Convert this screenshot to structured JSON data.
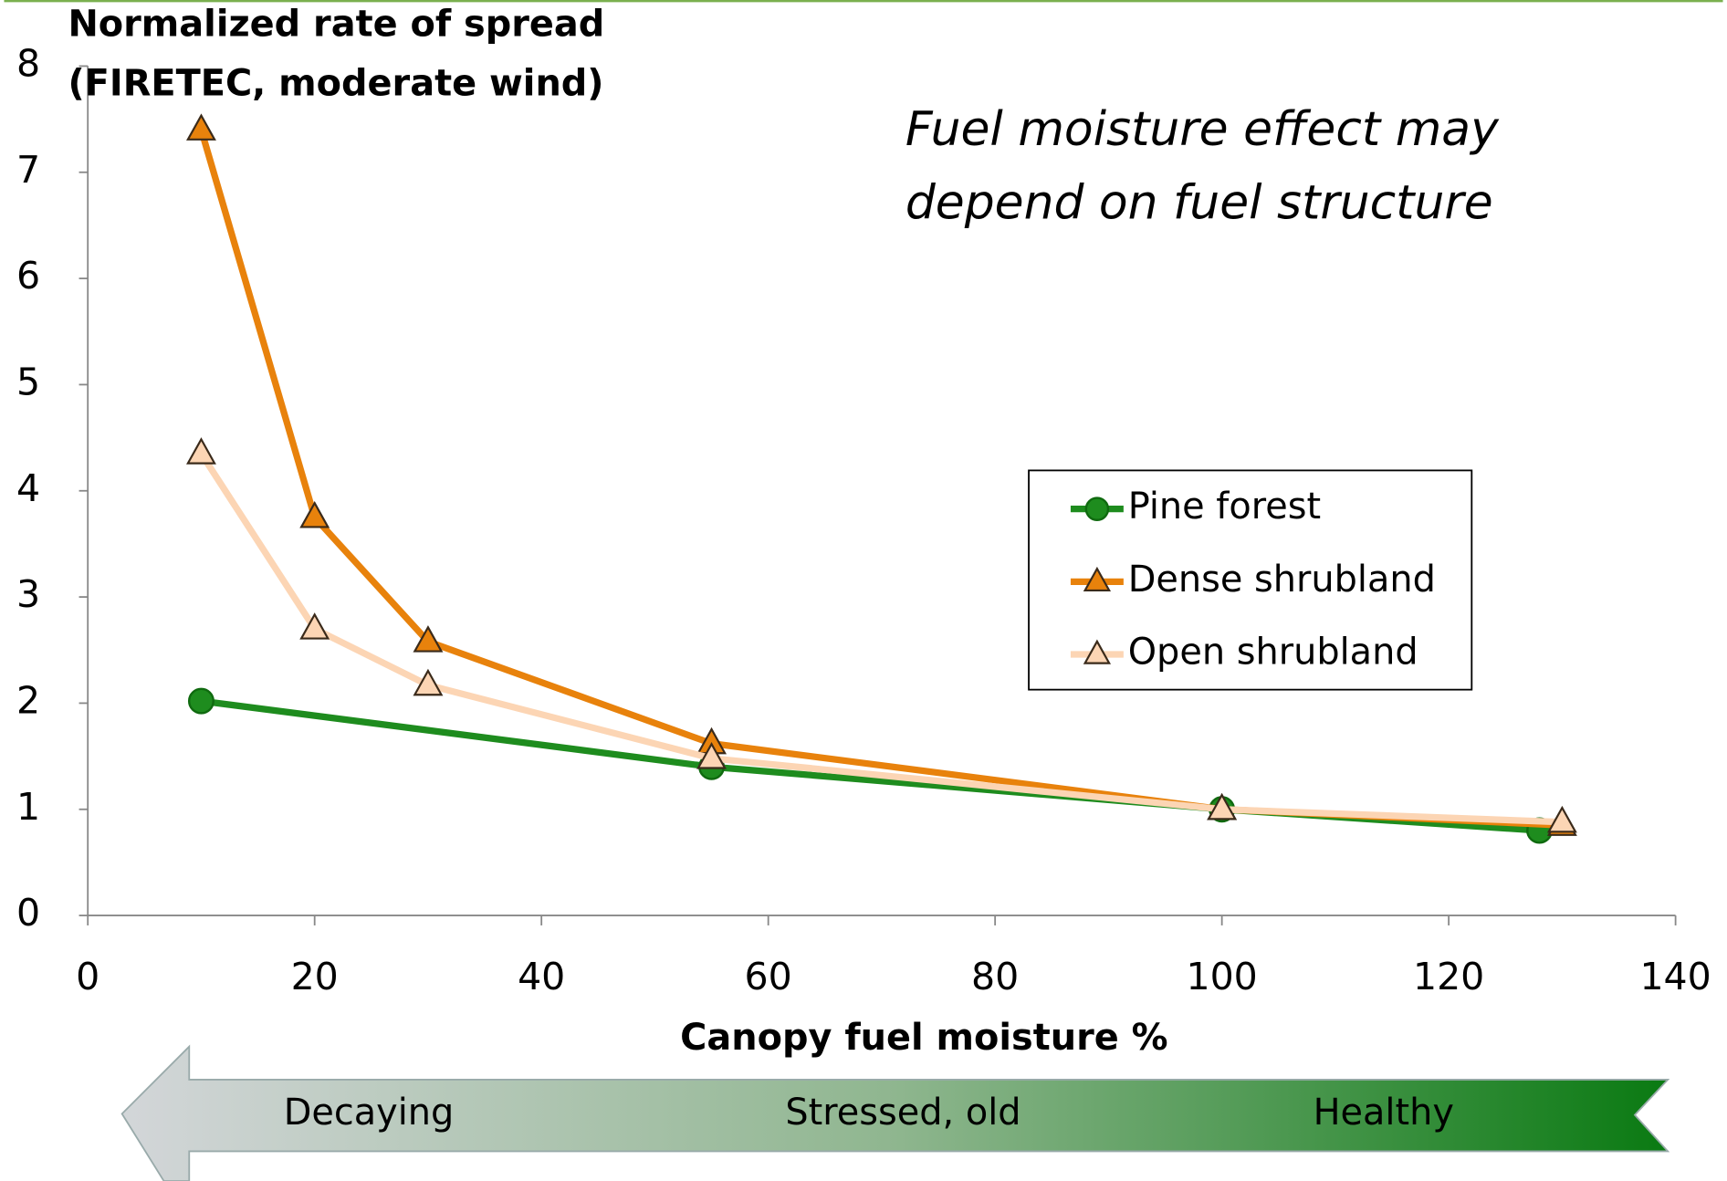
{
  "chart_data": {
    "type": "line",
    "ylabel": [
      "Normalized rate of spread",
      "(FIRETEC, moderate wind)"
    ],
    "xlabel": "Canopy  fuel moisture %",
    "annotation": [
      "Fuel moisture effect may",
      "depend on fuel structure"
    ],
    "arrow_labels": [
      "Decaying",
      "Stressed, old",
      "Healthy"
    ],
    "xlim": [
      0,
      140
    ],
    "xticks": [
      0,
      20,
      40,
      60,
      80,
      100,
      120,
      140
    ],
    "ylim": [
      0,
      8
    ],
    "yticks": [
      0,
      1,
      2,
      3,
      4,
      5,
      6,
      7,
      8
    ],
    "grid": false,
    "legend_position": "center-right",
    "series": [
      {
        "name": "Pine forest",
        "color": "#1e8c1e",
        "marker": "circle",
        "x": [
          10,
          55,
          100,
          128
        ],
        "values": [
          2.02,
          1.4,
          1.0,
          0.8
        ]
      },
      {
        "name": "Dense shrubland",
        "color": "#e8820c",
        "marker": "triangle",
        "x": [
          10,
          20,
          30,
          55,
          100,
          130
        ],
        "values": [
          7.4,
          3.75,
          2.58,
          1.62,
          1.0,
          0.85
        ]
      },
      {
        "name": "Open shrubland",
        "color": "#fcd5b4",
        "marker": "triangle",
        "x": [
          10,
          20,
          30,
          55,
          100,
          130
        ],
        "values": [
          4.35,
          2.7,
          2.17,
          1.48,
          1.0,
          0.88
        ]
      }
    ]
  }
}
